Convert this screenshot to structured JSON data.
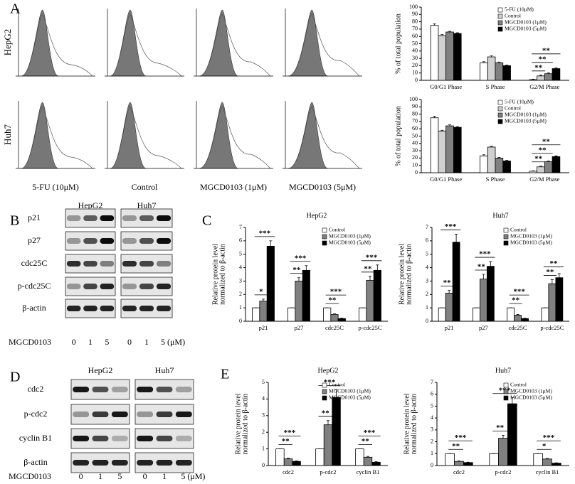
{
  "panels": [
    "A",
    "B",
    "C",
    "D",
    "E"
  ],
  "flow": {
    "rows": [
      "HepG2",
      "Huh7"
    ],
    "columns": [
      "5-FU (10μM)",
      "Control",
      "MGCD0103 (1μM)",
      "MGCD0103 (5μM)"
    ]
  },
  "blots": [
    {
      "cells": [
        "HepG2",
        "Huh7"
      ],
      "rows": [
        "p21",
        "p27",
        "cdc25C",
        "p-cdc25C",
        "β-actin"
      ],
      "treatment": "MGCD0103",
      "doses": [
        "0",
        "1",
        "5",
        "0",
        "1",
        "5 (μM)"
      ]
    },
    {
      "cells": [
        "HepG2",
        "Huh7"
      ],
      "rows": [
        "cdc2",
        "p-cdc2",
        "cyclin B1",
        "β-actin"
      ],
      "treatment": "MGCD0103",
      "doses": [
        "0",
        "1",
        "5",
        "0",
        "1",
        "5 (μM)"
      ]
    }
  ],
  "chart_data": [
    {
      "type": "bar",
      "ylabel": [
        "% of total population"
      ],
      "categories": [
        "G0/G1 Phase",
        "S Phase",
        "G2/M Phase"
      ],
      "series": [
        {
          "name": "5-FU (10μM)",
          "color": "#ffffff",
          "values": [
            75,
            24,
            1
          ],
          "errors": [
            2,
            1.5,
            0.5
          ]
        },
        {
          "name": "Control",
          "color": "#d0d0d0",
          "values": [
            61,
            32,
            6
          ],
          "errors": [
            1.5,
            1.5,
            1
          ]
        },
        {
          "name": "MGCD0103 (1μM)",
          "color": "#808080",
          "values": [
            66,
            24,
            9
          ],
          "errors": [
            1,
            1,
            1
          ]
        },
        {
          "name": "MGCD0103 (5μM)",
          "color": "#000000",
          "values": [
            64,
            20,
            16
          ],
          "errors": [
            1,
            1,
            1
          ]
        }
      ],
      "annotations": [
        [],
        [],
        [
          "**",
          "**",
          "**"
        ]
      ],
      "ylim": [
        0,
        100
      ],
      "yticks": [
        0,
        10,
        20,
        30,
        40,
        50,
        60,
        70,
        80,
        90,
        100
      ],
      "legend": "upper right"
    },
    {
      "type": "bar",
      "ylabel": [
        "% of total population"
      ],
      "categories": [
        "G0/G1 Phase",
        "S Phase",
        "G2/M Phase"
      ],
      "series": [
        {
          "name": "5-FU (10μM)",
          "color": "#ffffff",
          "values": [
            75,
            23,
            2
          ],
          "errors": [
            2,
            1.5,
            0.5
          ]
        },
        {
          "name": "Control",
          "color": "#d0d0d0",
          "values": [
            57,
            35,
            8
          ],
          "errors": [
            1,
            1,
            1
          ]
        },
        {
          "name": "MGCD0103 (1μM)",
          "color": "#808080",
          "values": [
            64,
            20,
            15
          ],
          "errors": [
            1.5,
            1,
            1
          ]
        },
        {
          "name": "MGCD0103 (5μM)",
          "color": "#000000",
          "values": [
            62,
            16,
            22
          ],
          "errors": [
            1,
            1,
            1
          ]
        }
      ],
      "annotations": [
        [],
        [],
        [
          "**",
          "**",
          "**"
        ]
      ],
      "ylim": [
        0,
        100
      ],
      "yticks": [
        0,
        10,
        20,
        30,
        40,
        50,
        60,
        70,
        80,
        90,
        100
      ],
      "legend": "upper right"
    },
    {
      "type": "bar",
      "title": "HepG2",
      "ylabel": [
        "Relative protein level",
        "normalized to β-actin"
      ],
      "categories": [
        "p21",
        "p27",
        "cdc25C",
        "p-cdc25C"
      ],
      "series": [
        {
          "name": "Control",
          "color": "#ffffff",
          "values": [
            1,
            1,
            1,
            1
          ],
          "errors": [
            0,
            0,
            0,
            0
          ]
        },
        {
          "name": "MGCD0103 (1μM)",
          "color": "#808080",
          "values": [
            1.5,
            3,
            0.5,
            3.05
          ],
          "errors": [
            0.15,
            0.25,
            0.05,
            0.3
          ]
        },
        {
          "name": "MGCD0103 (5μM)",
          "color": "#000000",
          "values": [
            5.6,
            3.8,
            0.2,
            3.8
          ],
          "errors": [
            0.4,
            0.35,
            0.03,
            0.4
          ]
        }
      ],
      "annotations": [
        [
          "*",
          "***"
        ],
        [
          "**",
          "***"
        ],
        [
          "**",
          "***"
        ],
        [
          "**",
          "***"
        ]
      ],
      "ylim": [
        0,
        7
      ],
      "yticks": [
        0,
        1,
        2,
        3,
        4,
        5,
        6,
        7
      ],
      "legend": "upper right"
    },
    {
      "type": "bar",
      "title": "Huh7",
      "ylabel": [
        "Relative protein level",
        "normalized to β-actin"
      ],
      "categories": [
        "p21",
        "p27",
        "cdc25C",
        "p-cdc25C"
      ],
      "series": [
        {
          "name": "Control",
          "color": "#ffffff",
          "values": [
            1,
            1,
            1,
            1
          ],
          "errors": [
            0,
            0,
            0,
            0
          ]
        },
        {
          "name": "MGCD0103 (1μM)",
          "color": "#808080",
          "values": [
            2.1,
            3.15,
            0.45,
            2.8
          ],
          "errors": [
            0.2,
            0.35,
            0.05,
            0.3
          ]
        },
        {
          "name": "MGCD0103 (5μM)",
          "color": "#000000",
          "values": [
            5.9,
            4.1,
            0.2,
            3.25
          ],
          "errors": [
            0.6,
            0.35,
            0.03,
            0.3
          ]
        }
      ],
      "annotations": [
        [
          "**",
          "***"
        ],
        [
          "**",
          "***"
        ],
        [
          "**",
          "***"
        ],
        [
          "**",
          "**"
        ]
      ],
      "ylim": [
        0,
        7
      ],
      "yticks": [
        0,
        1,
        2,
        3,
        4,
        5,
        6,
        7
      ],
      "legend": "upper right"
    },
    {
      "type": "bar",
      "title": "HepG2",
      "ylabel": [
        "Relative protein level",
        "normalized to β-actin"
      ],
      "categories": [
        "cdc2",
        "p-cdc2",
        "cyclin B1"
      ],
      "series": [
        {
          "name": "Control",
          "color": "#ffffff",
          "values": [
            1,
            1,
            1
          ],
          "errors": [
            0,
            0,
            0
          ]
        },
        {
          "name": "MGCD0103 (1μM)",
          "color": "#808080",
          "values": [
            0.4,
            2.45,
            0.5
          ],
          "errors": [
            0.04,
            0.25,
            0.05
          ]
        },
        {
          "name": "MGCD0103 (5μM)",
          "color": "#000000",
          "values": [
            0.25,
            4.1,
            0.2
          ],
          "errors": [
            0.03,
            0.45,
            0.03
          ]
        }
      ],
      "annotations": [
        [
          "**",
          "***"
        ],
        [
          "**",
          "***"
        ],
        [
          "**",
          "***"
        ]
      ],
      "ylim": [
        0,
        5
      ],
      "yticks": [
        0,
        1,
        2,
        3,
        4,
        5
      ],
      "legend": "upper right"
    },
    {
      "type": "bar",
      "title": "Huh7",
      "ylabel": [
        "Relative protein level",
        "normalized to β-actin"
      ],
      "categories": [
        "cdc2",
        "p-cdc2",
        "cyclin B1"
      ],
      "series": [
        {
          "name": "Control",
          "color": "#ffffff",
          "values": [
            1,
            1,
            1
          ],
          "errors": [
            0,
            0,
            0
          ]
        },
        {
          "name": "MGCD0103 (1μM)",
          "color": "#808080",
          "values": [
            0.35,
            2.3,
            0.55
          ],
          "errors": [
            0.04,
            0.25,
            0.05
          ]
        },
        {
          "name": "MGCD0103 (5μM)",
          "color": "#000000",
          "values": [
            0.25,
            5.2,
            0.2
          ],
          "errors": [
            0.03,
            0.5,
            0.03
          ]
        }
      ],
      "annotations": [
        [
          "**",
          "***"
        ],
        [
          "**",
          "***"
        ],
        [
          "*",
          "***"
        ]
      ],
      "ylim": [
        0,
        7
      ],
      "yticks": [
        0,
        1,
        2,
        3,
        4,
        5,
        6,
        7
      ],
      "legend": "upper right"
    }
  ]
}
